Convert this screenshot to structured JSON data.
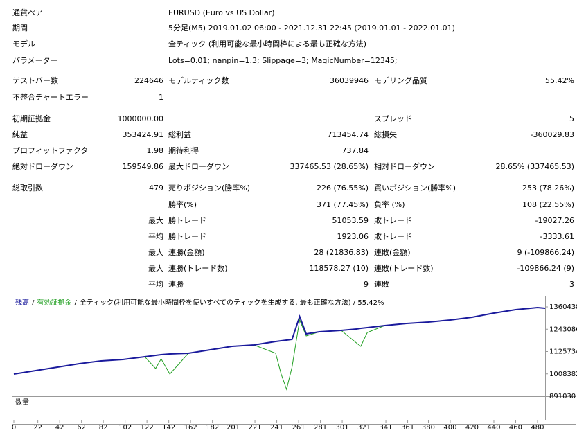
{
  "header": [
    [
      "通貨ペア",
      "EURUSD (Euro vs US Dollar)"
    ],
    [
      "期間",
      "5分足(M5) 2019.01.02 06:00 - 2021.12.31 22:45 (2019.01.01 - 2022.01.01)"
    ],
    [
      "モデル",
      "全ティック (利用可能な最小時間枠による最も正確な方法)"
    ],
    [
      "パラメーター",
      "Lots=0.01; nanpin=1.3; Slippage=3; MagicNumber=12345;"
    ]
  ],
  "stats": [
    [
      "テストバー数",
      "224646",
      "モデルティック数",
      "36039946",
      "モデリング品質",
      "55.42%"
    ],
    [
      "不整合チャートエラー",
      "1",
      null,
      null,
      null,
      null
    ],
    [
      "初期証拠金",
      "1000000.00",
      null,
      null,
      "スプレッド",
      "5"
    ],
    [
      "純益",
      "353424.91",
      "総利益",
      "713454.74",
      "総損失",
      "-360029.83"
    ],
    [
      "プロフィットファクタ",
      "1.98",
      "期待利得",
      "737.84",
      null,
      null
    ],
    [
      "絶対ドローダウン",
      "159549.86",
      "最大ドローダウン",
      "337465.53 (28.65%)",
      "相対ドローダウン",
      "28.65% (337465.53)"
    ],
    [
      "総取引数",
      "479",
      "売りポジション(勝率%)",
      "226 (76.55%)",
      "買いポジション(勝率%)",
      "253 (78.26%)"
    ],
    [
      null,
      null,
      "勝率(%)",
      "371 (77.45%)",
      "負率 (%)",
      "108 (22.55%)"
    ],
    [
      null,
      "最大",
      "勝トレード",
      "51053.59",
      "敗トレード",
      "-19027.26"
    ],
    [
      null,
      "平均",
      "勝トレード",
      "1923.06",
      "敗トレード",
      "-3333.61"
    ],
    [
      null,
      "最大",
      "連勝(金額)",
      "28 (21836.83)",
      "連敗(金額)",
      "9 (-109866.24)"
    ],
    [
      null,
      "最大",
      "連勝(トレード数)",
      "118578.27 (10)",
      "連敗(トレード数)",
      "-109866.24 (9)"
    ],
    [
      null,
      "平均",
      "連勝",
      "9",
      "連敗",
      "3"
    ]
  ],
  "chart_data": {
    "type": "line",
    "subtitle": "全ティック(利用可能な最小時間枠を使いすべてのティックを生成する, 最も正確な方法) / 55.42%",
    "legend_separator": "/",
    "volume_label": "数量",
    "x": [
      0,
      20,
      40,
      60,
      80,
      100,
      120,
      130,
      135,
      143,
      160,
      180,
      200,
      220,
      240,
      245,
      250,
      255,
      262,
      268,
      280,
      300,
      314,
      318,
      324,
      340,
      360,
      380,
      400,
      420,
      440,
      460,
      480,
      487
    ],
    "series": [
      {
        "name": "残高",
        "color": "#1a1a9c",
        "values": [
          1007500,
          1025700,
          1043900,
          1062100,
          1076600,
          1083900,
          1098400,
          1105700,
          1109400,
          1113000,
          1116600,
          1134800,
          1153000,
          1160300,
          1178500,
          1182100,
          1185800,
          1189400,
          1309500,
          1218500,
          1229400,
          1236700,
          1244000,
          1247600,
          1251300,
          1262200,
          1273100,
          1280400,
          1291300,
          1305900,
          1327700,
          1345900,
          1356800,
          1353200
        ]
      },
      {
        "name": "有効証拠金",
        "color": "#22a022",
        "values": [
          1007500,
          1025700,
          1043900,
          1062100,
          1076600,
          1083900,
          1098400,
          1036600,
          1087500,
          1007500,
          1116600,
          1134800,
          1153000,
          1160300,
          1116600,
          1007500,
          927400,
          1043900,
          1291300,
          1207600,
          1229400,
          1236700,
          1171200,
          1153000,
          1225800,
          1262200,
          1273100,
          1280400,
          1291300,
          1305900,
          1327700,
          1345900,
          1356800,
          1353200
        ]
      }
    ],
    "xlim": [
      0,
      487
    ],
    "xticks": [
      0,
      22,
      42,
      62,
      82,
      102,
      122,
      142,
      162,
      182,
      201,
      221,
      241,
      261,
      281,
      301,
      321,
      341,
      361,
      380,
      400,
      420,
      440,
      460,
      480
    ],
    "ylim": [
      891030,
      1411400
    ],
    "yticks": [
      891030,
      1008382,
      1125734,
      1243086,
      1360438
    ]
  }
}
